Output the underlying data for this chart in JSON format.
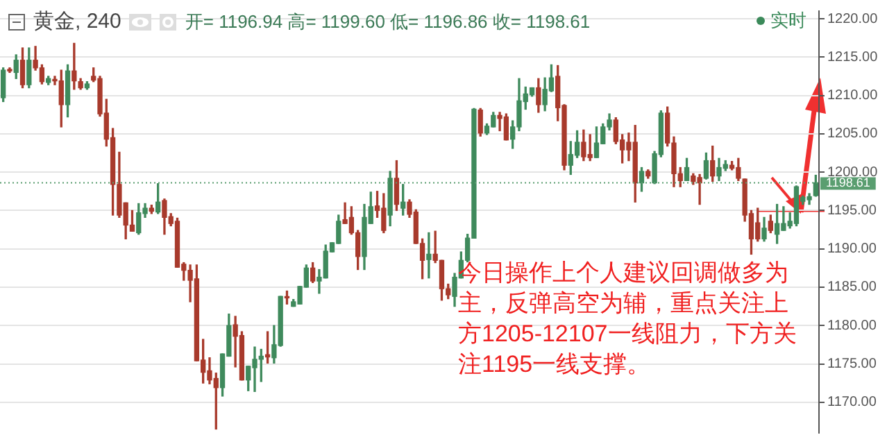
{
  "chart_data": {
    "type": "candlestick",
    "title": "黄金, 240",
    "annotations": [
      "开= 1196.94 高= 1199.60 低= 1196.86 收= 1198.61",
      "实时",
      "今日操作上个人建议回调做多为主，反弹高空为辅，重点关注上方1205-12107一线阻力，下方关注1195一线支撑。"
    ],
    "categories": [
      null,
      null,
      null,
      null,
      null,
      null,
      null,
      null,
      null,
      null,
      null,
      null,
      null,
      null,
      null,
      null,
      null,
      null,
      null,
      null,
      null,
      null,
      null,
      null,
      null,
      null,
      null,
      null,
      null,
      null,
      null,
      null,
      null,
      null,
      null,
      null,
      null,
      null,
      null,
      null,
      null,
      null,
      null,
      null,
      null,
      null,
      null,
      null,
      null,
      null,
      null,
      null,
      null,
      null,
      null,
      null,
      null,
      null,
      null,
      null,
      null,
      null,
      null,
      null,
      null,
      null,
      null,
      null,
      null,
      null,
      null,
      null,
      null,
      null,
      null,
      null,
      null,
      null,
      null,
      null,
      null,
      null,
      null,
      null,
      null,
      null,
      null,
      null,
      null,
      null,
      null,
      null,
      null,
      null,
      null,
      null,
      null,
      null,
      null,
      null,
      null,
      null,
      null,
      null,
      null,
      null,
      null,
      null,
      null,
      null,
      null,
      null,
      null,
      null,
      null,
      null,
      null,
      null,
      null,
      null,
      null,
      null,
      null,
      null,
      null,
      null,
      null
    ],
    "ohlc": [
      [
        1209.7,
        1213.6,
        1209.2,
        1213.3
      ],
      [
        1213.4,
        1213.6,
        1213.0,
        1213.2
      ],
      [
        1213.0,
        1215.3,
        1212.2,
        1214.6
      ],
      [
        1214.6,
        1216.2,
        1211.0,
        1211.4
      ],
      [
        1211.4,
        1216.2,
        1211.0,
        1214.6
      ],
      [
        1214.6,
        1216.4,
        1213.3,
        1213.6
      ],
      [
        1213.6,
        1214.0,
        1211.5,
        1211.8
      ],
      [
        1211.7,
        1212.5,
        1211.4,
        1212.2
      ],
      [
        1212.1,
        1212.5,
        1211.4,
        1211.9
      ],
      [
        1211.9,
        1213.3,
        1205.9,
        1208.8
      ],
      [
        1208.8,
        1214.0,
        1207.2,
        1213.2
      ],
      [
        1213.2,
        1216.8,
        1210.8,
        1211.9
      ],
      [
        1211.8,
        1212.2,
        1210.8,
        1211.0
      ],
      [
        1211.0,
        1211.8,
        1210.8,
        1211.5
      ],
      [
        1212.5,
        1213.6,
        1211.8,
        1212.0
      ],
      [
        1212.2,
        1212.5,
        1207.3,
        1207.6
      ],
      [
        1207.7,
        1209.5,
        1203.4,
        1204.3
      ],
      [
        1204.5,
        1205.7,
        1194.4,
        1198.4
      ],
      [
        1198.4,
        1202.6,
        1194.1,
        1194.4
      ],
      [
        1196.0,
        1196.0,
        1191.3,
        1193.1
      ],
      [
        1193.1,
        1195.0,
        1192.3,
        1192.3
      ],
      [
        1192.1,
        1195.9,
        1191.9,
        1194.7
      ],
      [
        1194.6,
        1195.9,
        1194.1,
        1195.3
      ],
      [
        1195.3,
        1195.7,
        1194.6,
        1194.9
      ],
      [
        1194.8,
        1198.5,
        1194.6,
        1196.1
      ],
      [
        1196.3,
        1196.5,
        1191.9,
        1194.1
      ],
      [
        1194.2,
        1194.6,
        1193.0,
        1193.3
      ],
      [
        1193.6,
        1194.0,
        1187.6,
        1187.6
      ],
      [
        1188.0,
        1188.2,
        1185.9,
        1187.2
      ],
      [
        1187.2,
        1187.9,
        1183.1,
        1185.9
      ],
      [
        1186.1,
        1187.9,
        1175.4,
        1175.4
      ],
      [
        1175.5,
        1178.2,
        1172.5,
        1173.9
      ],
      [
        1174.1,
        1175.8,
        1172.4,
        1172.9
      ],
      [
        1173.1,
        1173.8,
        1166.5,
        1171.9
      ],
      [
        1171.9,
        1176.3,
        1170.8,
        1176.3
      ],
      [
        1176.0,
        1181.5,
        1176.0,
        1180.0
      ],
      [
        1180.1,
        1181.2,
        1174.6,
        1178.6
      ],
      [
        1178.7,
        1179.2,
        1172.9,
        1172.9
      ],
      [
        1172.9,
        1174.7,
        1171.5,
        1174.7
      ],
      [
        1174.5,
        1177.2,
        1171.4,
        1175.6
      ],
      [
        1175.6,
        1176.9,
        1172.7,
        1176.0
      ],
      [
        1176.2,
        1179.2,
        1175.1,
        1175.9
      ],
      [
        1175.8,
        1180.0,
        1175.1,
        1177.5
      ],
      [
        1177.4,
        1183.8,
        1177.3,
        1183.8
      ],
      [
        1183.7,
        1184.5,
        1182.8,
        1183.6
      ],
      [
        1182.5,
        1183.4,
        1182.5,
        1183.1
      ],
      [
        1182.8,
        1185.1,
        1182.8,
        1185.1
      ],
      [
        1185.0,
        1187.9,
        1185.0,
        1187.5
      ],
      [
        1187.5,
        1188.2,
        1185.6,
        1185.8
      ],
      [
        1185.8,
        1187.3,
        1184.2,
        1186.3
      ],
      [
        1186.2,
        1190.5,
        1186.2,
        1189.7
      ],
      [
        1189.6,
        1190.8,
        1189.6,
        1190.8
      ],
      [
        1190.7,
        1194.4,
        1190.7,
        1193.6
      ],
      [
        1193.8,
        1196.0,
        1193.3,
        1193.3
      ],
      [
        1194.1,
        1195.5,
        1191.9,
        1192.1
      ],
      [
        1192.1,
        1192.4,
        1187.3,
        1189.0
      ],
      [
        1189.0,
        1195.8,
        1187.3,
        1194.1
      ],
      [
        1193.3,
        1197.4,
        1193.3,
        1195.5
      ],
      [
        1195.6,
        1197.5,
        1194.1,
        1195.0
      ],
      [
        1195.3,
        1197.2,
        1192.1,
        1192.4
      ],
      [
        1194.4,
        1200.1,
        1193.0,
        1199.2
      ],
      [
        1199.2,
        1201.5,
        1195.0,
        1195.8
      ],
      [
        1195.3,
        1198.4,
        1194.4,
        1196.1
      ],
      [
        1196.1,
        1196.4,
        1194.1,
        1194.5
      ],
      [
        1194.8,
        1195.1,
        1190.7,
        1190.7
      ],
      [
        1190.7,
        1191.3,
        1186.1,
        1188.5
      ],
      [
        1188.6,
        1192.1,
        1186.2,
        1189.3
      ],
      [
        1189.3,
        1192.3,
        1188.2,
        1188.5
      ],
      [
        1188.5,
        1188.5,
        1183.3,
        1184.8
      ],
      [
        1184.8,
        1185.4,
        1183.5,
        1184.0
      ],
      [
        1183.8,
        1186.8,
        1182.5,
        1186.3
      ],
      [
        1186.2,
        1189.6,
        1186.2,
        1188.5
      ],
      [
        1188.5,
        1191.9,
        1188.3,
        1191.4
      ],
      [
        1191.4,
        1208.3,
        1191.4,
        1208.2
      ],
      [
        1208.1,
        1208.3,
        1204.7,
        1205.1
      ],
      [
        1205.1,
        1206.3,
        1204.9,
        1206.0
      ],
      [
        1205.9,
        1207.8,
        1205.9,
        1207.4
      ],
      [
        1207.4,
        1207.8,
        1205.4,
        1207.0
      ],
      [
        1207.2,
        1207.6,
        1204.2,
        1204.2
      ],
      [
        1204.3,
        1206.7,
        1203.1,
        1205.9
      ],
      [
        1205.9,
        1212.2,
        1205.4,
        1209.3
      ],
      [
        1209.2,
        1211.1,
        1208.2,
        1210.2
      ],
      [
        1210.1,
        1211.0,
        1209.9,
        1211.0
      ],
      [
        1211.0,
        1212.2,
        1207.8,
        1208.8
      ],
      [
        1208.8,
        1212.3,
        1208.0,
        1210.8
      ],
      [
        1210.6,
        1214.0,
        1210.5,
        1212.3
      ],
      [
        1212.5,
        1213.9,
        1206.7,
        1208.4
      ],
      [
        1208.7,
        1208.8,
        1200.3,
        1200.9
      ],
      [
        1200.9,
        1204.0,
        1199.7,
        1202.3
      ],
      [
        1202.2,
        1205.4,
        1201.9,
        1203.9
      ],
      [
        1203.9,
        1205.5,
        1201.5,
        1202.0
      ],
      [
        1202.3,
        1204.9,
        1201.5,
        1201.9
      ],
      [
        1201.9,
        1205.9,
        1201.9,
        1203.8
      ],
      [
        1203.7,
        1206.3,
        1203.7,
        1205.9
      ],
      [
        1205.9,
        1207.6,
        1205.5,
        1206.8
      ],
      [
        1206.8,
        1207.1,
        1203.7,
        1204.0
      ],
      [
        1204.2,
        1204.9,
        1201.2,
        1202.9
      ],
      [
        1203.9,
        1205.1,
        1201.5,
        1202.9
      ],
      [
        1203.9,
        1206.1,
        1196.1,
        1198.6
      ],
      [
        1198.6,
        1200.6,
        1197.5,
        1200.1
      ],
      [
        1200.1,
        1200.3,
        1199.2,
        1199.5
      ],
      [
        1198.6,
        1202.7,
        1198.5,
        1202.4
      ],
      [
        1202.3,
        1208.0,
        1202.0,
        1207.7
      ],
      [
        1207.7,
        1208.5,
        1203.4,
        1203.8
      ],
      [
        1203.8,
        1204.6,
        1198.1,
        1199.8
      ],
      [
        1199.8,
        1200.6,
        1198.1,
        1198.9
      ],
      [
        1198.9,
        1201.8,
        1198.9,
        1200.6
      ],
      [
        1199.5,
        1199.8,
        1198.4,
        1198.8
      ],
      [
        1199.3,
        1199.7,
        1195.8,
        1198.6
      ],
      [
        1199.2,
        1202.5,
        1199.1,
        1201.5
      ],
      [
        1201.5,
        1203.4,
        1198.8,
        1199.5
      ],
      [
        1199.5,
        1201.8,
        1198.9,
        1200.6
      ],
      [
        1200.5,
        1201.5,
        1200.2,
        1201.0
      ],
      [
        1200.9,
        1201.4,
        1200.3,
        1200.5
      ],
      [
        1200.6,
        1201.8,
        1198.9,
        1199.2
      ],
      [
        1199.1,
        1199.1,
        1193.6,
        1194.4
      ],
      [
        1194.6,
        1195.0,
        1189.3,
        1191.3
      ],
      [
        1193.4,
        1195.3,
        1191.0,
        1191.3
      ],
      [
        1191.3,
        1194.1,
        1191.0,
        1192.7
      ],
      [
        1193.6,
        1194.4,
        1192.1,
        1192.4
      ],
      [
        1191.9,
        1195.8,
        1190.7,
        1193.3
      ],
      [
        1192.4,
        1195.5,
        1192.4,
        1193.3
      ],
      [
        1193.0,
        1194.7,
        1192.7,
        1193.6
      ],
      [
        1193.3,
        1198.2,
        1193.0,
        1198.1
      ],
      [
        1196.2,
        1196.9,
        1195.8,
        1196.7
      ],
      [
        1196.4,
        1197.2,
        1195.8,
        1196.8
      ],
      [
        1196.94,
        1199.6,
        1196.86,
        1198.61
      ]
    ],
    "ylim": [
      1166,
      1221
    ],
    "yticks": [
      {
        "value": 1170,
        "label": "1170.00"
      },
      {
        "value": 1175,
        "label": "1175.00"
      },
      {
        "value": 1180,
        "label": "1180.00"
      },
      {
        "value": 1185,
        "label": "1185.00"
      },
      {
        "value": 1190,
        "label": "1190.00"
      },
      {
        "value": 1195,
        "label": "1195.00"
      },
      {
        "value": 1200,
        "label": "1200.00"
      },
      {
        "value": 1205,
        "label": "1205.00"
      },
      {
        "value": 1210,
        "label": "1210.00"
      },
      {
        "value": 1215,
        "label": "1215.00"
      },
      {
        "value": 1220,
        "label": "1220.00"
      }
    ],
    "ref_lines": [
      {
        "axis": "y",
        "value": 1198.61,
        "label": "1198.61",
        "color": "#5a9e70",
        "line_style": "dotted"
      }
    ],
    "grid": "y",
    "legend": false,
    "tick_labels": "y"
  }
}
